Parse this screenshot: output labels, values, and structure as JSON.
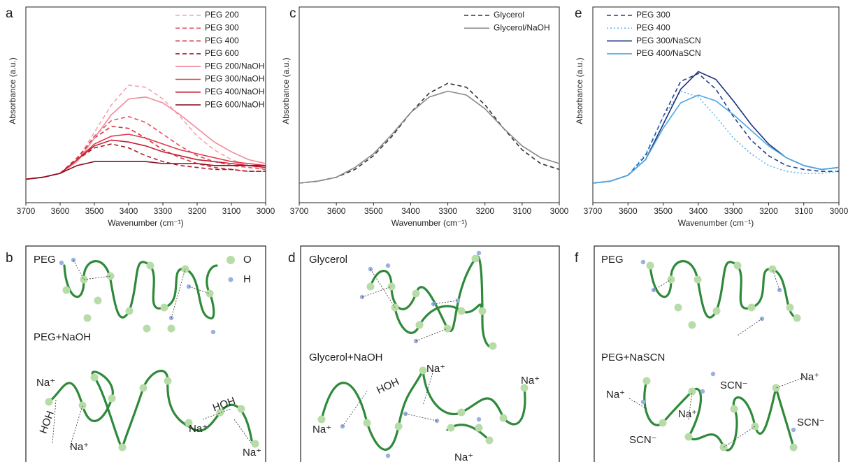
{
  "chart_data": [
    {
      "type": "line",
      "label": "a",
      "xlabel": "Wavenumber (cm⁻¹)",
      "ylabel": "Absorbance (a.u.)",
      "x": [
        3700,
        3650,
        3600,
        3550,
        3500,
        3450,
        3400,
        3350,
        3300,
        3250,
        3200,
        3150,
        3100,
        3050,
        3000
      ],
      "xlim": [
        3700,
        3000
      ],
      "xticks": [
        3700,
        3600,
        3500,
        3400,
        3300,
        3200,
        3100,
        3000
      ],
      "ylim": [
        0,
        1
      ],
      "legend": "upper right",
      "series": [
        {
          "name": "PEG 200",
          "color": "#f4a3ad",
          "style": "dashed",
          "values": [
            0.12,
            0.13,
            0.15,
            0.22,
            0.36,
            0.5,
            0.6,
            0.59,
            0.53,
            0.44,
            0.34,
            0.27,
            0.22,
            0.19,
            0.17
          ]
        },
        {
          "name": "PEG 300",
          "color": "#e8505e",
          "style": "dashed",
          "values": [
            0.12,
            0.13,
            0.15,
            0.22,
            0.34,
            0.42,
            0.44,
            0.41,
            0.35,
            0.29,
            0.24,
            0.21,
            0.19,
            0.18,
            0.17
          ]
        },
        {
          "name": "PEG 400",
          "color": "#d5303f",
          "style": "dashed",
          "values": [
            0.12,
            0.13,
            0.15,
            0.23,
            0.33,
            0.39,
            0.38,
            0.33,
            0.27,
            0.23,
            0.2,
            0.18,
            0.17,
            0.16,
            0.16
          ]
        },
        {
          "name": "PEG 600",
          "color": "#a81b2b",
          "style": "dashed",
          "values": [
            0.12,
            0.13,
            0.15,
            0.22,
            0.28,
            0.3,
            0.28,
            0.24,
            0.21,
            0.19,
            0.18,
            0.17,
            0.17,
            0.16,
            0.16
          ]
        },
        {
          "name": "PEG 200/NaOH",
          "color": "#f08a9a",
          "style": "solid",
          "values": [
            0.12,
            0.13,
            0.15,
            0.21,
            0.33,
            0.45,
            0.53,
            0.54,
            0.51,
            0.45,
            0.38,
            0.31,
            0.26,
            0.22,
            0.2
          ]
        },
        {
          "name": "PEG 300/NaOH",
          "color": "#e03a4a",
          "style": "solid",
          "values": [
            0.12,
            0.13,
            0.15,
            0.22,
            0.3,
            0.34,
            0.35,
            0.33,
            0.3,
            0.27,
            0.25,
            0.23,
            0.21,
            0.2,
            0.19
          ]
        },
        {
          "name": "PEG 400/NaOH",
          "color": "#c4202f",
          "style": "solid",
          "values": [
            0.12,
            0.13,
            0.15,
            0.22,
            0.29,
            0.32,
            0.31,
            0.29,
            0.26,
            0.24,
            0.22,
            0.21,
            0.2,
            0.19,
            0.18
          ]
        },
        {
          "name": "PEG 600/NaOH",
          "color": "#8a1020",
          "style": "solid",
          "values": [
            0.12,
            0.13,
            0.15,
            0.19,
            0.21,
            0.21,
            0.21,
            0.21,
            0.2,
            0.2,
            0.2,
            0.19,
            0.19,
            0.19,
            0.19
          ]
        }
      ]
    },
    {
      "type": "line",
      "label": "c",
      "xlabel": "Wavenumber (cm⁻¹)",
      "ylabel": "Absorbance (a.u.)",
      "x": [
        3700,
        3650,
        3600,
        3550,
        3500,
        3450,
        3400,
        3350,
        3300,
        3250,
        3200,
        3150,
        3100,
        3050,
        3000
      ],
      "xlim": [
        3700,
        3000
      ],
      "xticks": [
        3700,
        3600,
        3500,
        3400,
        3300,
        3200,
        3100,
        3000
      ],
      "ylim": [
        0,
        1
      ],
      "legend": "upper right",
      "series": [
        {
          "name": "Glycerol",
          "color": "#333333",
          "style": "dashed",
          "values": [
            0.1,
            0.11,
            0.13,
            0.17,
            0.24,
            0.34,
            0.46,
            0.56,
            0.61,
            0.59,
            0.5,
            0.38,
            0.27,
            0.2,
            0.17
          ]
        },
        {
          "name": "Glycerol/NaOH",
          "color": "#888888",
          "style": "solid",
          "values": [
            0.1,
            0.11,
            0.13,
            0.18,
            0.25,
            0.35,
            0.46,
            0.54,
            0.57,
            0.55,
            0.48,
            0.38,
            0.29,
            0.23,
            0.2
          ]
        }
      ]
    },
    {
      "type": "line",
      "label": "e",
      "xlabel": "Wavenumber (cm⁻¹)",
      "ylabel": "Absorbance (a.u.)",
      "x": [
        3700,
        3650,
        3600,
        3550,
        3500,
        3450,
        3400,
        3350,
        3300,
        3250,
        3200,
        3150,
        3100,
        3050,
        3000
      ],
      "xlim": [
        3700,
        3000
      ],
      "xticks": [
        3700,
        3600,
        3500,
        3400,
        3300,
        3200,
        3100,
        3000
      ],
      "ylim": [
        0,
        1
      ],
      "legend": "upper left",
      "series": [
        {
          "name": "PEG 300",
          "color": "#1f3f8f",
          "style": "dashed",
          "values": [
            0.1,
            0.11,
            0.14,
            0.24,
            0.44,
            0.62,
            0.66,
            0.58,
            0.44,
            0.32,
            0.24,
            0.19,
            0.17,
            0.16,
            0.16
          ]
        },
        {
          "name": "PEG 400",
          "color": "#5bb8f0",
          "style": "dotted",
          "values": [
            0.1,
            0.11,
            0.14,
            0.25,
            0.44,
            0.57,
            0.54,
            0.44,
            0.33,
            0.25,
            0.19,
            0.16,
            0.15,
            0.15,
            0.16
          ]
        },
        {
          "name": "PEG 300/NaSCN",
          "color": "#1a2f7a",
          "style": "solid",
          "values": [
            0.1,
            0.11,
            0.14,
            0.22,
            0.4,
            0.58,
            0.67,
            0.63,
            0.52,
            0.4,
            0.3,
            0.23,
            0.19,
            0.17,
            0.18
          ]
        },
        {
          "name": "PEG 400/NaSCN",
          "color": "#4aa8e6",
          "style": "solid",
          "values": [
            0.1,
            0.11,
            0.14,
            0.22,
            0.38,
            0.51,
            0.55,
            0.52,
            0.45,
            0.37,
            0.29,
            0.23,
            0.19,
            0.17,
            0.18
          ]
        }
      ]
    }
  ],
  "diagrams": [
    {
      "label": "b",
      "texts": [
        "PEG",
        "O",
        "H",
        "PEG+NaOH",
        "Na⁺",
        "HOH",
        "Na⁺",
        "Na⁺",
        "HOH",
        "Na⁺"
      ]
    },
    {
      "label": "d",
      "texts": [
        "Glycerol",
        "Glycerol+NaOH",
        "Na⁺",
        "HOH",
        "Na⁺",
        "Na⁺",
        "Na⁺"
      ]
    },
    {
      "label": "f",
      "texts": [
        "PEG",
        "PEG+NaSCN",
        "Na⁺",
        "SCN⁻",
        "Na⁺",
        "SCN⁻",
        "Na⁺",
        "SCN⁻"
      ]
    }
  ]
}
